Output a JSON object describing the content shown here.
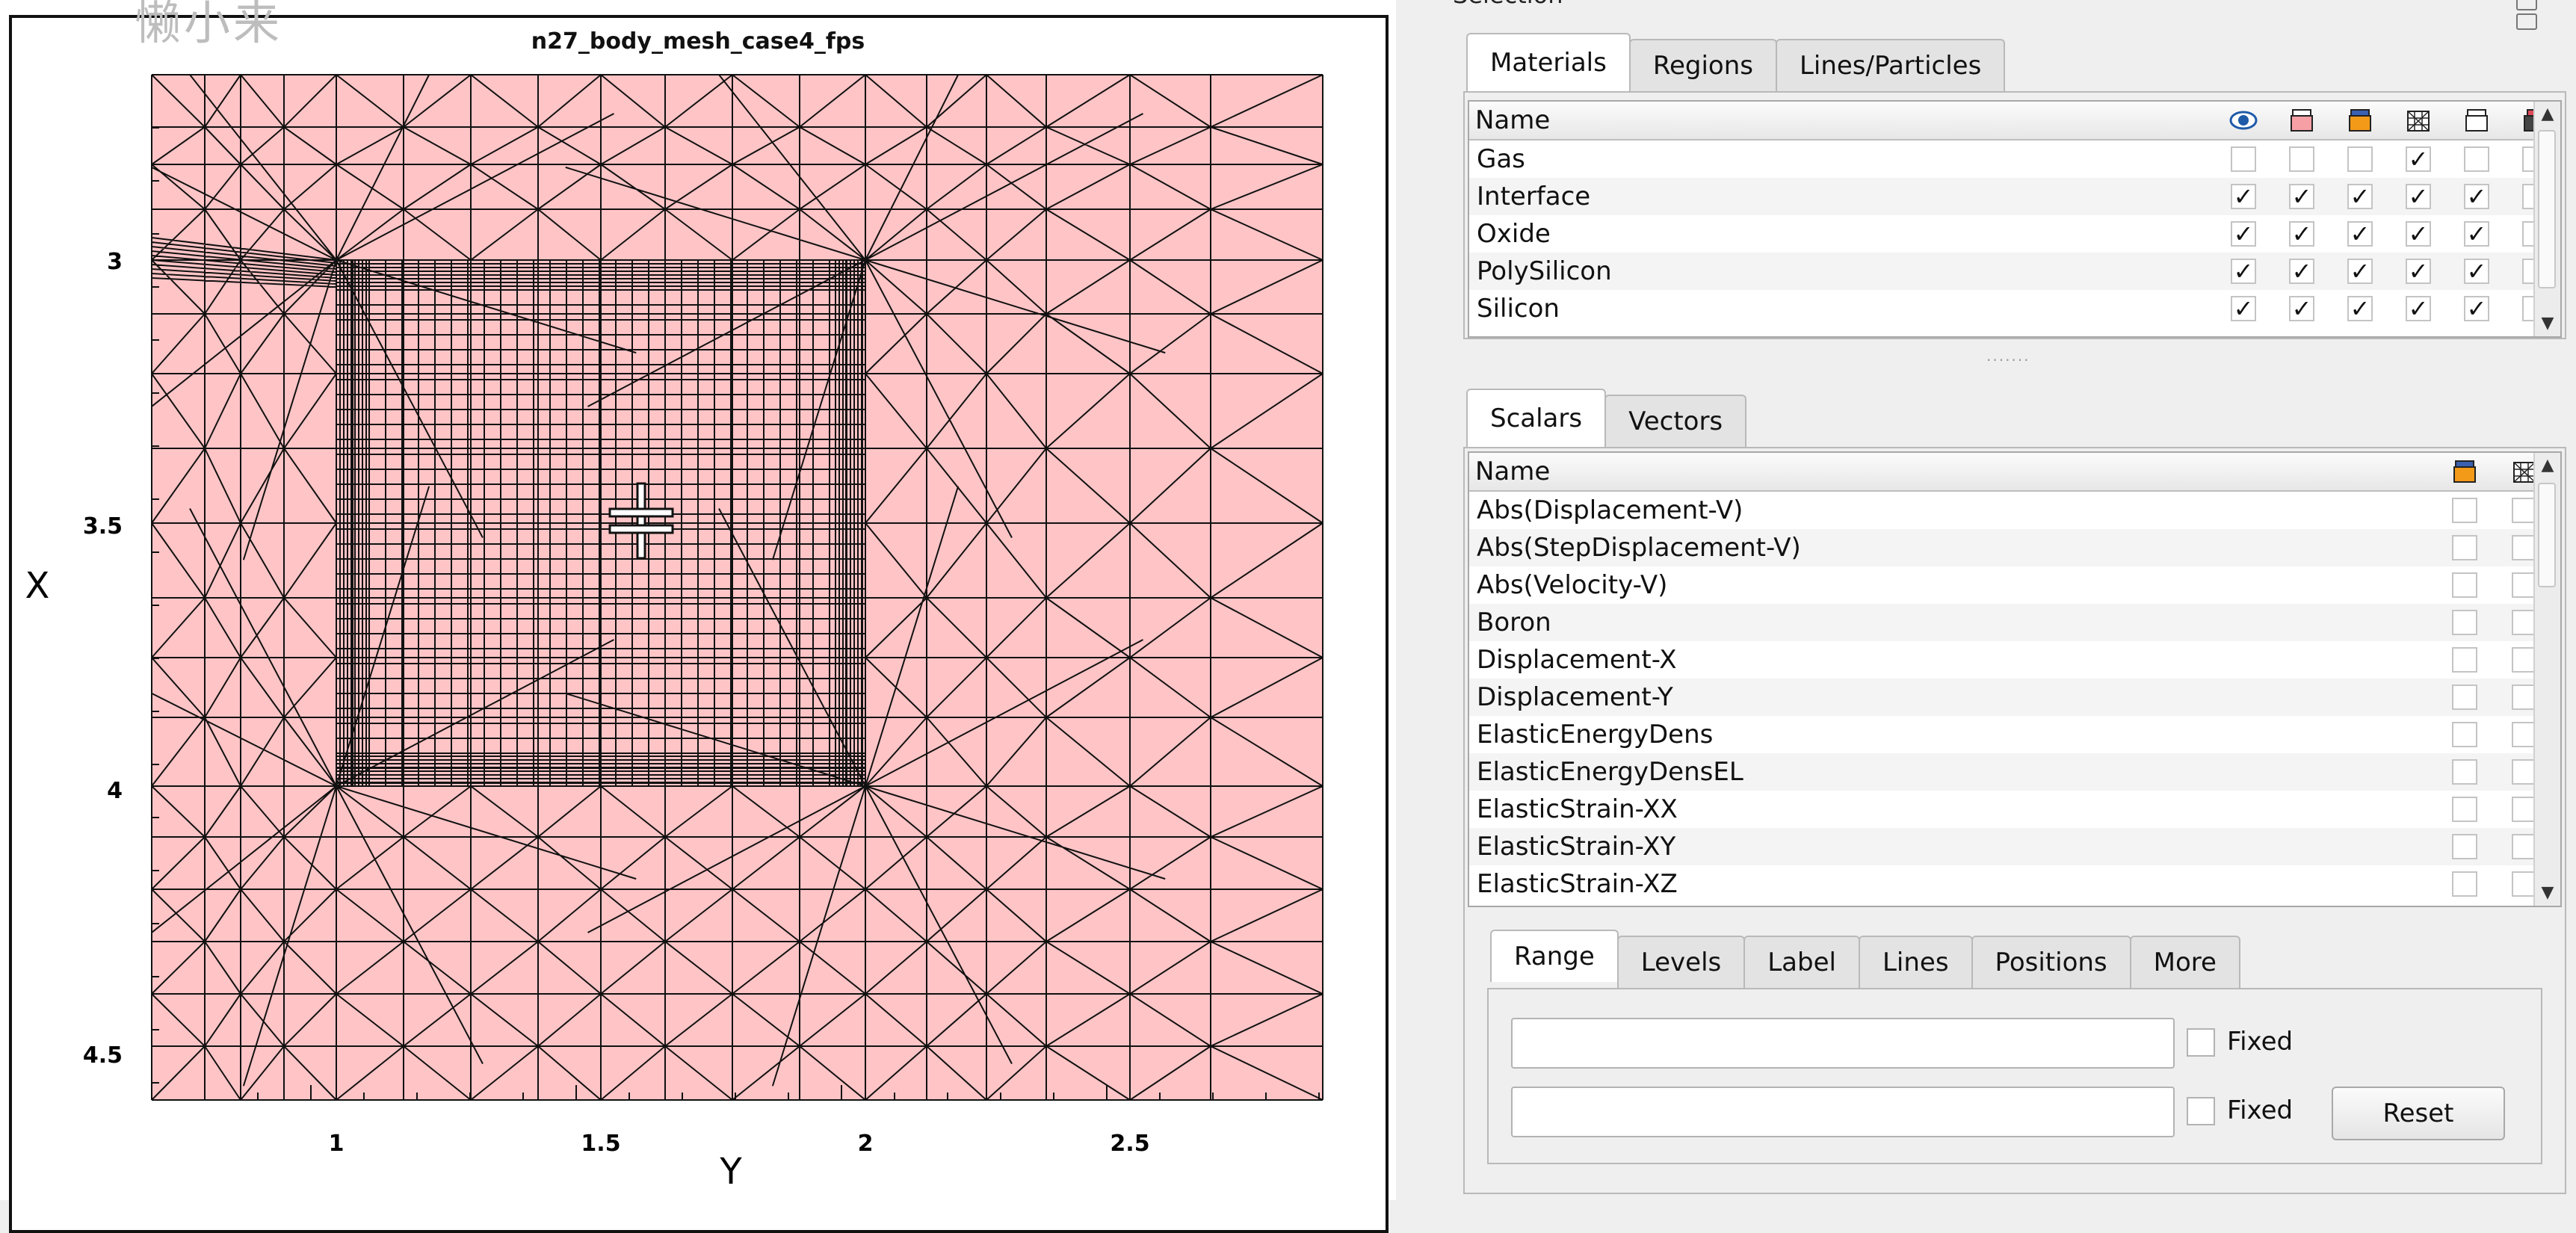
{
  "watermark": "懒小来",
  "plot": {
    "title": "n27_body_mesh_case4_fps",
    "x_axis_label": "Y",
    "y_axis_label": "X",
    "x_ticks": [
      "1",
      "1.5",
      "2",
      "2.5"
    ],
    "y_ticks": [
      "3",
      "3.5",
      "4",
      "4.5"
    ],
    "colors": {
      "mesh_fill": "#ffc4c6",
      "mesh_line": "#111111"
    },
    "cursor_icon": "crosshair-cursor-icon"
  },
  "selection": {
    "title": "Selection",
    "top_tabs": [
      {
        "label": "Materials",
        "active": true
      },
      {
        "label": "Regions",
        "active": false
      },
      {
        "label": "Lines/Particles",
        "active": false
      }
    ],
    "materials_table": {
      "header": "Name",
      "header_icons": [
        "eye-icon",
        "pink-box-icon",
        "orange-box-icon",
        "mesh-box-icon",
        "outline-box-icon",
        "solid-box-icon",
        "arrow-box-icon"
      ],
      "rows": [
        {
          "name": "Gas",
          "checks": [
            false,
            false,
            false,
            true,
            false,
            false,
            false
          ]
        },
        {
          "name": "Interface",
          "checks": [
            true,
            true,
            true,
            true,
            true,
            false,
            true
          ]
        },
        {
          "name": "Oxide",
          "checks": [
            true,
            true,
            true,
            true,
            true,
            false,
            true
          ]
        },
        {
          "name": "PolySilicon",
          "checks": [
            true,
            true,
            true,
            true,
            true,
            false,
            true
          ]
        },
        {
          "name": "Silicon",
          "checks": [
            true,
            true,
            true,
            true,
            true,
            false,
            true
          ]
        }
      ]
    },
    "field_tabs": [
      {
        "label": "Scalars",
        "active": true
      },
      {
        "label": "Vectors",
        "active": false
      }
    ],
    "scalars_table": {
      "header": "Name",
      "header_icons": [
        "orange-box-icon",
        "mesh-box-icon"
      ],
      "rows": [
        "Abs(Displacement-V)",
        "Abs(StepDisplacement-V)",
        "Abs(Velocity-V)",
        "Boron",
        "Displacement-X",
        "Displacement-Y",
        "ElasticEnergyDens",
        "ElasticEnergyDensEL",
        "ElasticStrain-XX",
        "ElasticStrain-XY",
        "ElasticStrain-XZ"
      ]
    },
    "option_tabs": [
      {
        "label": "Range",
        "active": true
      },
      {
        "label": "Levels",
        "active": false
      },
      {
        "label": "Label",
        "active": false
      },
      {
        "label": "Lines",
        "active": false
      },
      {
        "label": "Positions",
        "active": false
      },
      {
        "label": "More",
        "active": false
      }
    ],
    "range": {
      "min_value": "",
      "max_value": "",
      "fixed_label": "Fixed",
      "reset_label": "Reset"
    }
  }
}
